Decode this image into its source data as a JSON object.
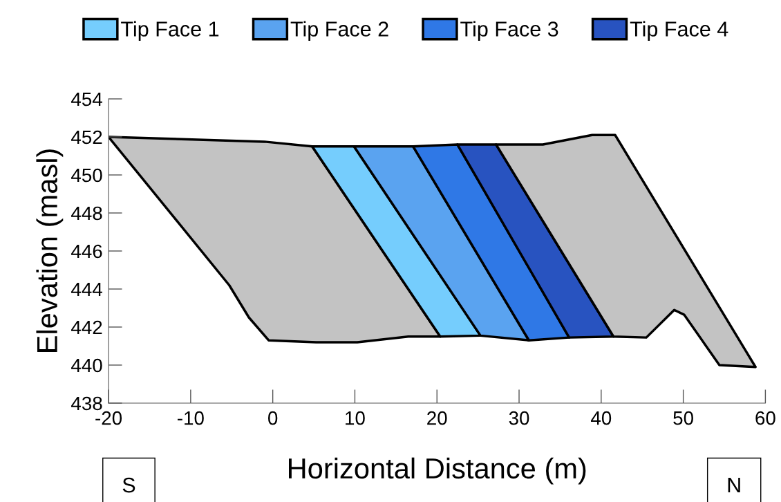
{
  "chart_data": {
    "type": "area",
    "xlabel": "Horizontal Distance (m)",
    "ylabel": "Elevation (masl)",
    "xlim": [
      -20,
      60
    ],
    "xticks": [
      -20,
      -10,
      0,
      10,
      20,
      30,
      40,
      50,
      60
    ],
    "ylim": [
      438,
      454
    ],
    "yticks": [
      438,
      440,
      442,
      444,
      446,
      448,
      450,
      452,
      454
    ],
    "grid": false,
    "legend": "top",
    "annotations": [
      "S",
      "N"
    ],
    "series": [
      {
        "color": "#c3c3c3",
        "x": [
          -20,
          -1,
          4.8,
          20.4,
          16.5,
          10.3,
          5.3,
          -0.5,
          -2.9,
          -5.3
        ],
        "values": [
          452.0,
          451.75,
          451.5,
          441.5,
          441.5,
          441.2,
          441.2,
          441.3,
          442.5,
          444.2
        ]
      },
      {
        "name": "Tip Face 1",
        "color": "#75cdfd",
        "x": [
          4.8,
          9.9,
          25.3,
          20.4
        ],
        "values": [
          451.5,
          451.5,
          441.55,
          441.5
        ]
      },
      {
        "name": "Tip Face 2",
        "color": "#5aa3f0",
        "x": [
          9.9,
          17.1,
          31.2,
          25.3
        ],
        "values": [
          451.5,
          451.5,
          441.3,
          441.55
        ]
      },
      {
        "name": "Tip Face 3",
        "color": "#2f78e6",
        "x": [
          17.1,
          22.5,
          36.1,
          31.2
        ],
        "values": [
          451.5,
          451.6,
          441.45,
          441.3
        ]
      },
      {
        "name": "Tip Face 4",
        "color": "#2853c0",
        "x": [
          22.5,
          27.2,
          41.5,
          36.1
        ],
        "values": [
          451.6,
          451.6,
          441.5,
          441.45
        ]
      },
      {
        "color": "#c3c3c3",
        "x": [
          27.2,
          32.9,
          38.9,
          41.7,
          58.8,
          54.4,
          50.1,
          48.9,
          45.5,
          41.5
        ],
        "values": [
          451.6,
          451.6,
          452.1,
          452.1,
          439.9,
          440.0,
          442.65,
          442.9,
          441.45,
          441.5
        ]
      }
    ]
  }
}
